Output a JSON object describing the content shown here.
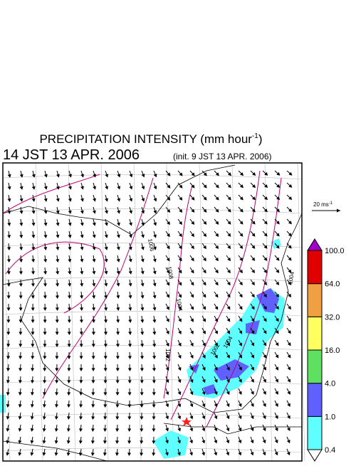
{
  "header": {
    "title": "PRECIPITATION INTENSITY (mm hour",
    "title_sup": "-1",
    "title_end": ")",
    "valid_time": "14 JST 13 APR. 2006",
    "init_time": "(init. 9 JST 13 APR. 2006)"
  },
  "wind_scale": {
    "label": "20 ms",
    "label_sup": "-1"
  },
  "isobar_labels": [
    "1006",
    "1008",
    "1004",
    "1002",
    "1002",
    "1004",
    "1004"
  ],
  "colorbar": {
    "levels": [
      "0.4",
      "1.0",
      "4.0",
      "16.0",
      "32.0",
      "64.0",
      "100.0"
    ],
    "colors": [
      "#ffffff",
      "#60ffff",
      "#6060ff",
      "#60e060",
      "#ffff60",
      "#f0a040",
      "#e00000",
      "#a000c8"
    ]
  }
}
